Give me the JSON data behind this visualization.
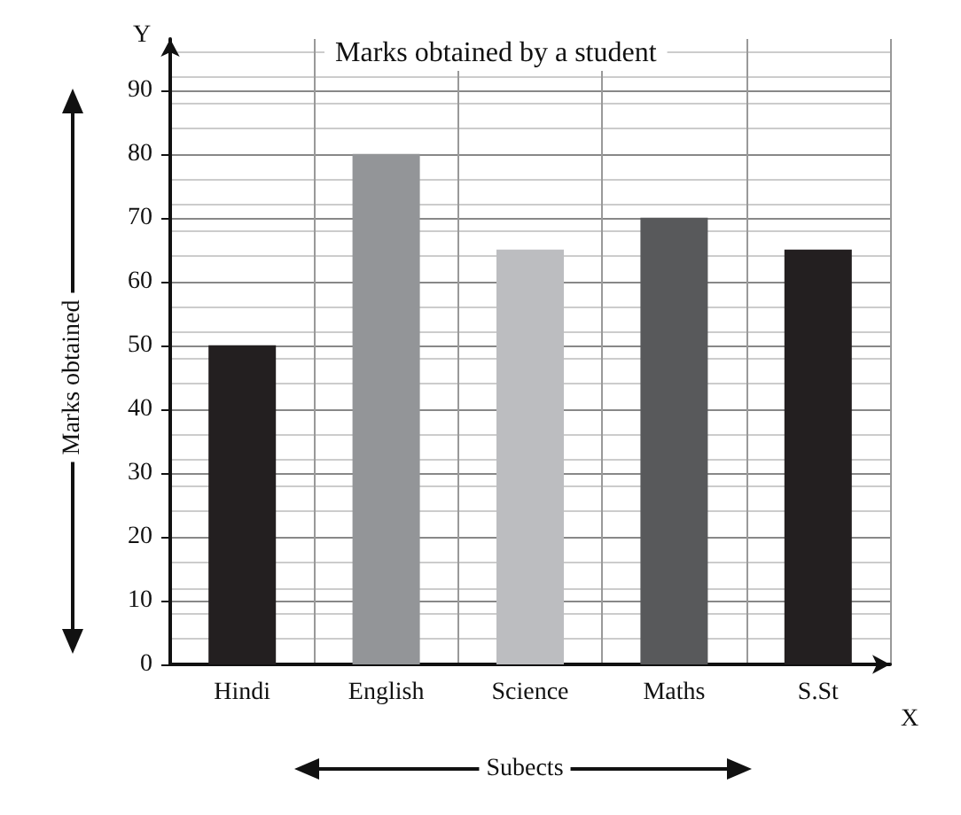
{
  "chart_data": {
    "type": "bar",
    "title": "Marks obtained by a student",
    "xlabel": "Subects",
    "ylabel": "Marks obtained",
    "annotations": [
      "Y",
      "X"
    ],
    "categories": [
      "Hindi",
      "English",
      "Science",
      "Maths",
      "S.St"
    ],
    "values": [
      50,
      80,
      65,
      70,
      65
    ],
    "colors": [
      "#231f20",
      "#939598",
      "#bcbdc0",
      "#58595b",
      "#231f20"
    ],
    "ylim": [
      0,
      98
    ],
    "yticks": [
      0,
      10,
      20,
      30,
      40,
      50,
      60,
      70,
      80,
      90
    ],
    "grid": true
  }
}
